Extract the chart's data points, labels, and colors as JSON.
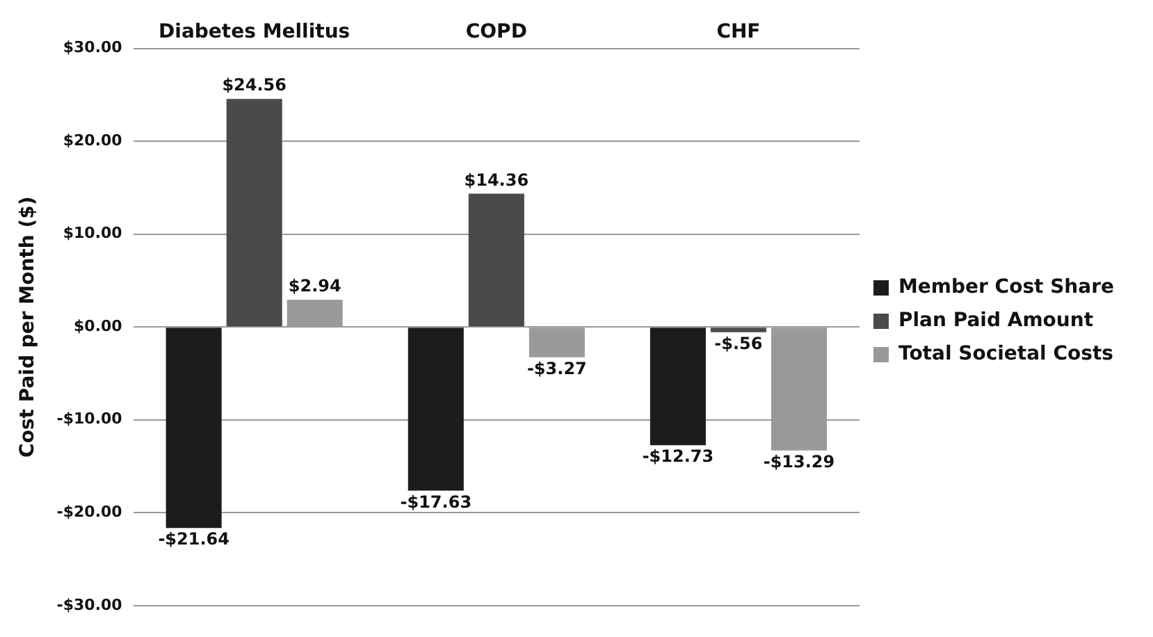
{
  "chart_data": {
    "type": "bar",
    "ylabel": "Cost Paid per Month ($)",
    "categories": [
      "Diabetes Mellitus",
      "COPD",
      "CHF"
    ],
    "series": [
      {
        "name": "Member Cost Share",
        "color": "#1c1c1c",
        "values": [
          -21.64,
          -17.63,
          -12.73
        ],
        "value_labels": [
          "-$21.64",
          "-$17.63",
          "-$12.73"
        ]
      },
      {
        "name": "Plan Paid Amount",
        "color": "#4a4a4a",
        "values": [
          24.56,
          14.36,
          -0.56
        ],
        "value_labels": [
          "$24.56",
          "$14.36",
          "-$.56"
        ]
      },
      {
        "name": "Total Societal Costs",
        "color": "#9a9a9a",
        "values": [
          2.94,
          -3.27,
          -13.29
        ],
        "value_labels": [
          "$2.94",
          "-$3.27",
          "-$13.29"
        ]
      }
    ],
    "ylim": [
      -30,
      30
    ],
    "yticks": [
      {
        "value": -30,
        "label": "-$30.00"
      },
      {
        "value": -20,
        "label": "-$20.00"
      },
      {
        "value": -10,
        "label": "-$10.00"
      },
      {
        "value": 0,
        "label": "$0.00"
      },
      {
        "value": 10,
        "label": "$10.00"
      },
      {
        "value": 20,
        "label": "$20.00"
      },
      {
        "value": 30,
        "label": "$30.00"
      }
    ],
    "grid": "y",
    "legend": "right"
  }
}
